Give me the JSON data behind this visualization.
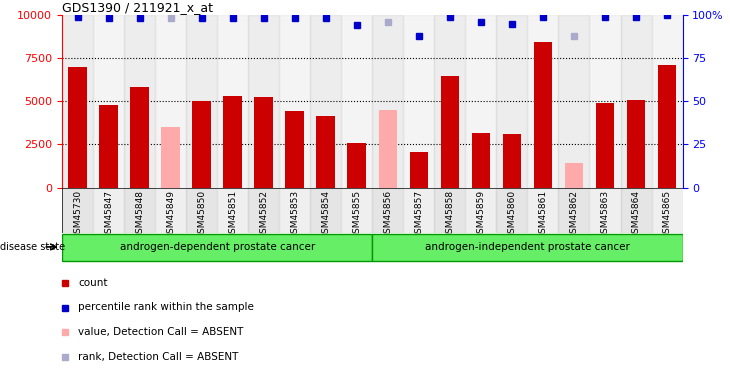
{
  "title": "GDS1390 / 211921_x_at",
  "samples": [
    "GSM45730",
    "GSM45847",
    "GSM45848",
    "GSM45849",
    "GSM45850",
    "GSM45851",
    "GSM45852",
    "GSM45853",
    "GSM45854",
    "GSM45855",
    "GSM45856",
    "GSM45857",
    "GSM45858",
    "GSM45859",
    "GSM45860",
    "GSM45861",
    "GSM45862",
    "GSM45863",
    "GSM45864",
    "GSM45865"
  ],
  "count_values": [
    7000,
    4800,
    5800,
    null,
    5000,
    5300,
    5250,
    4450,
    4150,
    2600,
    null,
    2050,
    6450,
    3150,
    3100,
    8450,
    null,
    4900,
    5050,
    7100
  ],
  "count_absent": [
    null,
    null,
    null,
    3500,
    null,
    null,
    null,
    null,
    null,
    null,
    4500,
    null,
    null,
    null,
    null,
    null,
    1400,
    null,
    null,
    null
  ],
  "rank_values": [
    99,
    98,
    98,
    null,
    98,
    98,
    98,
    98,
    98,
    94,
    null,
    88,
    99,
    96,
    95,
    99,
    null,
    99,
    99,
    100
  ],
  "rank_absent": [
    null,
    null,
    null,
    98,
    null,
    null,
    null,
    null,
    null,
    null,
    96,
    null,
    null,
    null,
    null,
    null,
    88,
    null,
    null,
    null
  ],
  "group1_count": 10,
  "group1_label": "androgen-dependent prostate cancer",
  "group2_label": "androgen-independent prostate cancer",
  "ylim_left": [
    0,
    10000
  ],
  "ylim_right": [
    0,
    100
  ],
  "yticks_left": [
    0,
    2500,
    5000,
    7500,
    10000
  ],
  "yticks_right": [
    0,
    25,
    50,
    75,
    100
  ],
  "bar_color_present": "#cc0000",
  "bar_color_absent": "#ffaaaa",
  "rank_color_present": "#0000cc",
  "rank_color_absent": "#aaaacc",
  "group_color": "#66ee66",
  "group_border": "#009900",
  "col_color_even": "#cccccc",
  "col_color_odd": "#e0e0e0",
  "legend_items": [
    "count",
    "percentile rank within the sample",
    "value, Detection Call = ABSENT",
    "rank, Detection Call = ABSENT"
  ],
  "legend_colors": [
    "#cc0000",
    "#0000cc",
    "#ffaaaa",
    "#aaaacc"
  ]
}
